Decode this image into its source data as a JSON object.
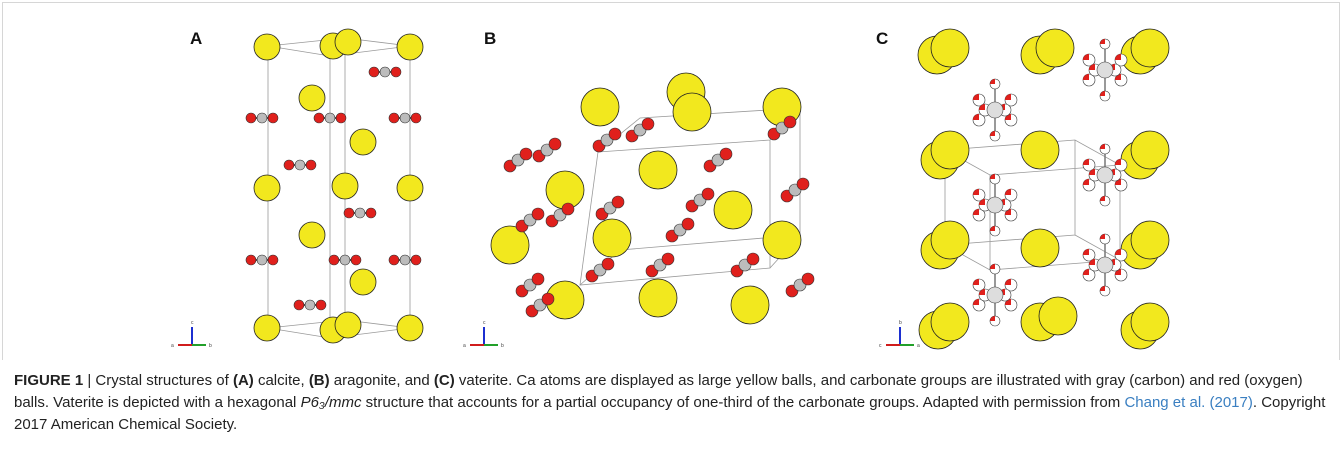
{
  "panels": [
    {
      "label": "A",
      "axes": [
        "c",
        "a",
        "b"
      ]
    },
    {
      "label": "B",
      "axes": [
        "c",
        "a",
        "b"
      ]
    },
    {
      "label": "C",
      "axes": [
        "b",
        "c",
        "a"
      ]
    }
  ],
  "caption": [
    "FIGURE 1",
    " | Crystal structures of ",
    "(A)",
    " calcite, ",
    "(B)",
    " aragonite, and ",
    "(C)",
    " vaterite. Ca atoms are displayed as large yellow balls, and carbonate groups are illustrated with gray (carbon) and red (oxygen) balls. Vaterite is depicted with a hexagonal ",
    "P6₃/mmc",
    " structure that accounts for a partial occupancy of one-third of the carbonate groups. Adapted with permission from ",
    "Chang et al. (2017)",
    ". Copyright 2017 American Chemical Society."
  ]
}
